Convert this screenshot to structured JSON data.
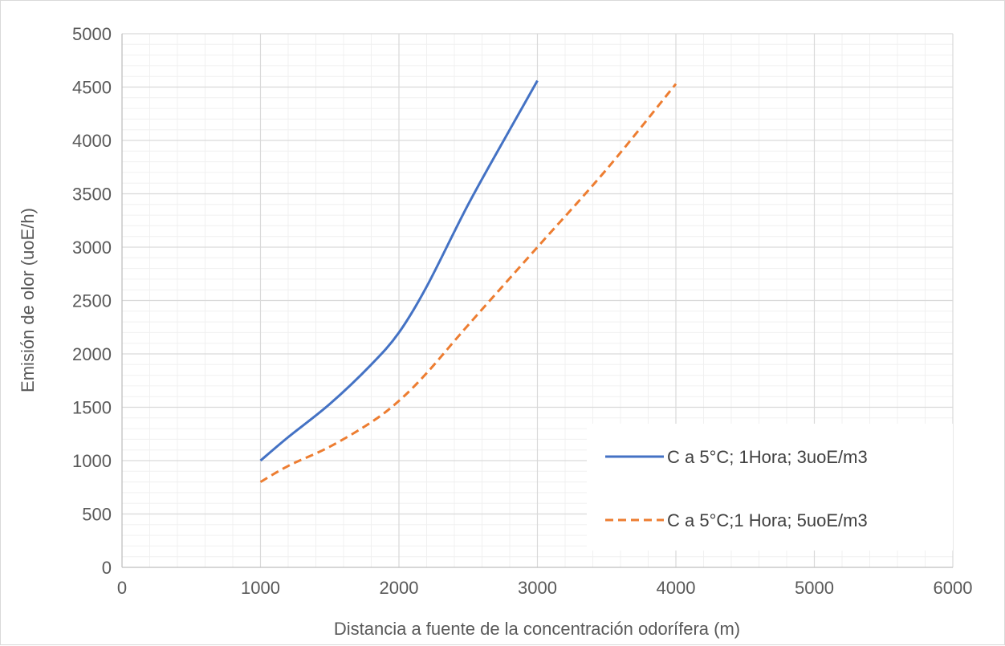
{
  "chart_data": {
    "type": "line",
    "title": "",
    "xlabel": "Distancia a fuente de la concentración odorífera (m)",
    "ylabel": "Emisión de olor (uoE/h)",
    "xlim": [
      0,
      6000
    ],
    "ylim": [
      0,
      5000
    ],
    "x_ticks": [
      0,
      1000,
      2000,
      3000,
      4000,
      5000,
      6000
    ],
    "y_ticks": [
      0,
      500,
      1000,
      1500,
      2000,
      2500,
      3000,
      3500,
      4000,
      4500,
      5000
    ],
    "x_minor_step": 200,
    "y_minor_step": 100,
    "grid": true,
    "legend_position": "bottom-right",
    "series": [
      {
        "name": "C a 5°C; 1Hora; 3uoE/m3",
        "color": "#4472c4",
        "dash": "solid",
        "x": [
          1000,
          1200,
          1500,
          1800,
          2000,
          2200,
          2500,
          2800,
          3000
        ],
        "y": [
          1000,
          1220,
          1530,
          1900,
          2200,
          2630,
          3400,
          4100,
          4560
        ]
      },
      {
        "name": "C a 5°C;1 Hora; 5uoE/m3",
        "color": "#ed7d31",
        "dash": "dashed",
        "x": [
          1000,
          1200,
          1500,
          1800,
          2000,
          2200,
          2500,
          3000,
          3500,
          4000
        ],
        "y": [
          800,
          950,
          1130,
          1360,
          1560,
          1820,
          2270,
          3000,
          3730,
          4530
        ]
      }
    ]
  }
}
